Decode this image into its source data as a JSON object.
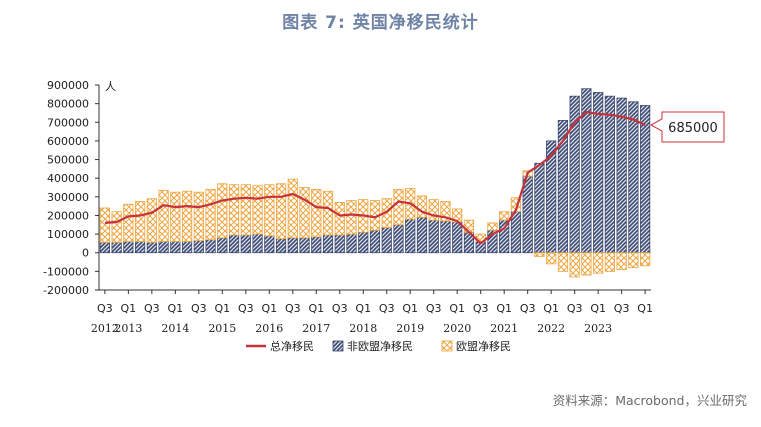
{
  "figure": {
    "title": "图表 7:  英国净移民统计",
    "source": "资料来源：Macrobond，兴业研究"
  },
  "colors": {
    "total_line": "#c8323a",
    "non_eu": "#3d4a72",
    "eu": "#eea540",
    "callout_border": "#c8323a"
  },
  "chart_data": {
    "type": "bar",
    "title": "",
    "ylabel": "人",
    "xlabel": "",
    "ylim": [
      -200000,
      900000
    ],
    "yticks": [
      900000,
      800000,
      700000,
      600000,
      500000,
      400000,
      300000,
      200000,
      100000,
      0,
      -100000,
      -200000
    ],
    "ytick_labels": [
      "900000",
      "800000",
      "700000",
      "600000",
      "500000",
      "400000",
      "300000",
      "200000",
      "100000",
      "0",
      "-100000",
      "-200000"
    ],
    "categories": [
      "Q3 2012",
      "Q4 2012",
      "Q1 2013",
      "Q2 2013",
      "Q3 2013",
      "Q4 2013",
      "Q1 2014",
      "Q2 2014",
      "Q3 2014",
      "Q4 2014",
      "Q1 2015",
      "Q2 2015",
      "Q3 2015",
      "Q4 2015",
      "Q1 2016",
      "Q2 2016",
      "Q3 2016",
      "Q4 2016",
      "Q1 2017",
      "Q2 2017",
      "Q3 2017",
      "Q4 2017",
      "Q1 2018",
      "Q2 2018",
      "Q3 2018",
      "Q4 2018",
      "Q1 2019",
      "Q2 2019",
      "Q3 2019",
      "Q4 2019",
      "Q1 2020",
      "Q2 2020",
      "Q3 2020",
      "Q4 2020",
      "Q1 2021",
      "Q2 2021",
      "Q3 2021",
      "Q4 2021",
      "Q1 2022",
      "Q2 2022",
      "Q3 2022",
      "Q4 2022",
      "Q1 2023",
      "Q2 2023",
      "Q3 2023",
      "Q4 2023",
      "Q1 2024"
    ],
    "x_tick_labels": [
      "Q3",
      "Q1",
      "Q3",
      "Q1",
      "Q3",
      "Q1",
      "Q3",
      "Q1",
      "Q3",
      "Q1",
      "Q3",
      "Q1",
      "Q3",
      "Q1",
      "Q3",
      "Q1",
      "Q3",
      "Q1",
      "Q3",
      "Q1",
      "Q3",
      "Q1",
      "Q3",
      "Q1"
    ],
    "year_labels": [
      "2012",
      "2013",
      "2014",
      "2015",
      "2016",
      "2017",
      "2018",
      "2019",
      "2020",
      "2021",
      "2022",
      "2023"
    ],
    "series": [
      {
        "name": "总净移民",
        "kind": "line",
        "values": [
          160000,
          165000,
          195000,
          200000,
          215000,
          255000,
          245000,
          250000,
          245000,
          260000,
          280000,
          290000,
          295000,
          290000,
          300000,
          300000,
          315000,
          285000,
          245000,
          240000,
          200000,
          205000,
          200000,
          190000,
          220000,
          275000,
          265000,
          220000,
          200000,
          190000,
          170000,
          110000,
          50000,
          100000,
          130000,
          230000,
          430000,
          470000,
          520000,
          600000,
          700000,
          755000,
          745000,
          740000,
          730000,
          715000,
          685000
        ]
      },
      {
        "name": "非欧盟净移民",
        "kind": "bar",
        "values": [
          55000,
          55000,
          60000,
          60000,
          55000,
          60000,
          60000,
          60000,
          65000,
          70000,
          80000,
          95000,
          95000,
          100000,
          90000,
          75000,
          80000,
          80000,
          85000,
          95000,
          95000,
          100000,
          110000,
          120000,
          135000,
          150000,
          180000,
          190000,
          175000,
          170000,
          165000,
          110000,
          60000,
          120000,
          175000,
          220000,
          410000,
          480000,
          600000,
          710000,
          840000,
          880000,
          860000,
          840000,
          830000,
          810000,
          790000
        ]
      },
      {
        "name": "欧盟净移民",
        "kind": "bar",
        "values": [
          185000,
          165000,
          200000,
          215000,
          235000,
          275000,
          265000,
          270000,
          260000,
          270000,
          290000,
          270000,
          270000,
          260000,
          275000,
          295000,
          315000,
          270000,
          255000,
          235000,
          175000,
          180000,
          175000,
          160000,
          155000,
          190000,
          165000,
          115000,
          110000,
          105000,
          70000,
          65000,
          40000,
          40000,
          45000,
          75000,
          30000,
          -20000,
          -60000,
          -100000,
          -130000,
          -120000,
          -110000,
          -100000,
          -90000,
          -80000,
          -70000
        ]
      }
    ],
    "callout": {
      "value": "685000"
    },
    "legend_position": "bottom",
    "grid": false
  }
}
